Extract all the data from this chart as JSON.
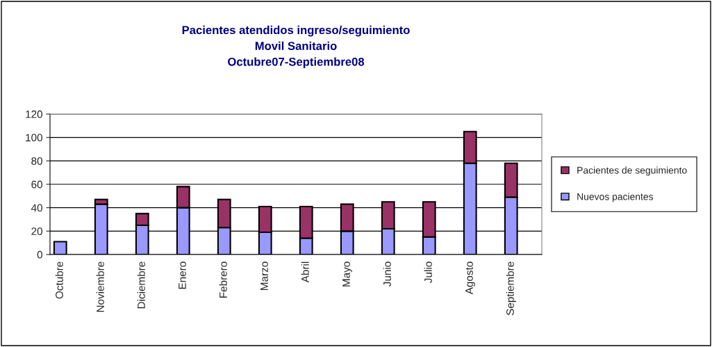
{
  "chart_data": {
    "type": "bar",
    "title": "Pacientes atendidos ingreso/seguimiento\nMovil Sanitario\nOctubre07-Septiembre08",
    "categories": [
      "Octubre",
      null,
      "Noviembre",
      null,
      "Diciembre",
      null,
      "Enero",
      null,
      "Febrero",
      null,
      "Marzo",
      null,
      "Abril",
      null,
      "Mayo",
      null,
      "Junio",
      null,
      "Julio",
      null,
      "Agosto",
      null,
      "Septiembre",
      null
    ],
    "stacked": true,
    "series": [
      {
        "name": "Nuevos pacientes",
        "color": "#9999ff",
        "values": [
          11,
          null,
          43,
          null,
          25,
          null,
          40,
          null,
          23,
          null,
          19,
          null,
          14,
          null,
          20,
          null,
          22,
          null,
          15,
          null,
          78,
          null,
          49,
          null
        ]
      },
      {
        "name": "Pacientes de seguimiento",
        "color": "#993366",
        "values": [
          null,
          null,
          4,
          null,
          10,
          null,
          18,
          null,
          24,
          null,
          22,
          null,
          27,
          null,
          23,
          null,
          23,
          null,
          30,
          null,
          27,
          null,
          29,
          null
        ]
      }
    ],
    "ylim": [
      0,
      120
    ],
    "yticks": [
      0,
      20,
      40,
      60,
      80,
      100,
      120
    ],
    "grid": "y",
    "legend": "right"
  }
}
